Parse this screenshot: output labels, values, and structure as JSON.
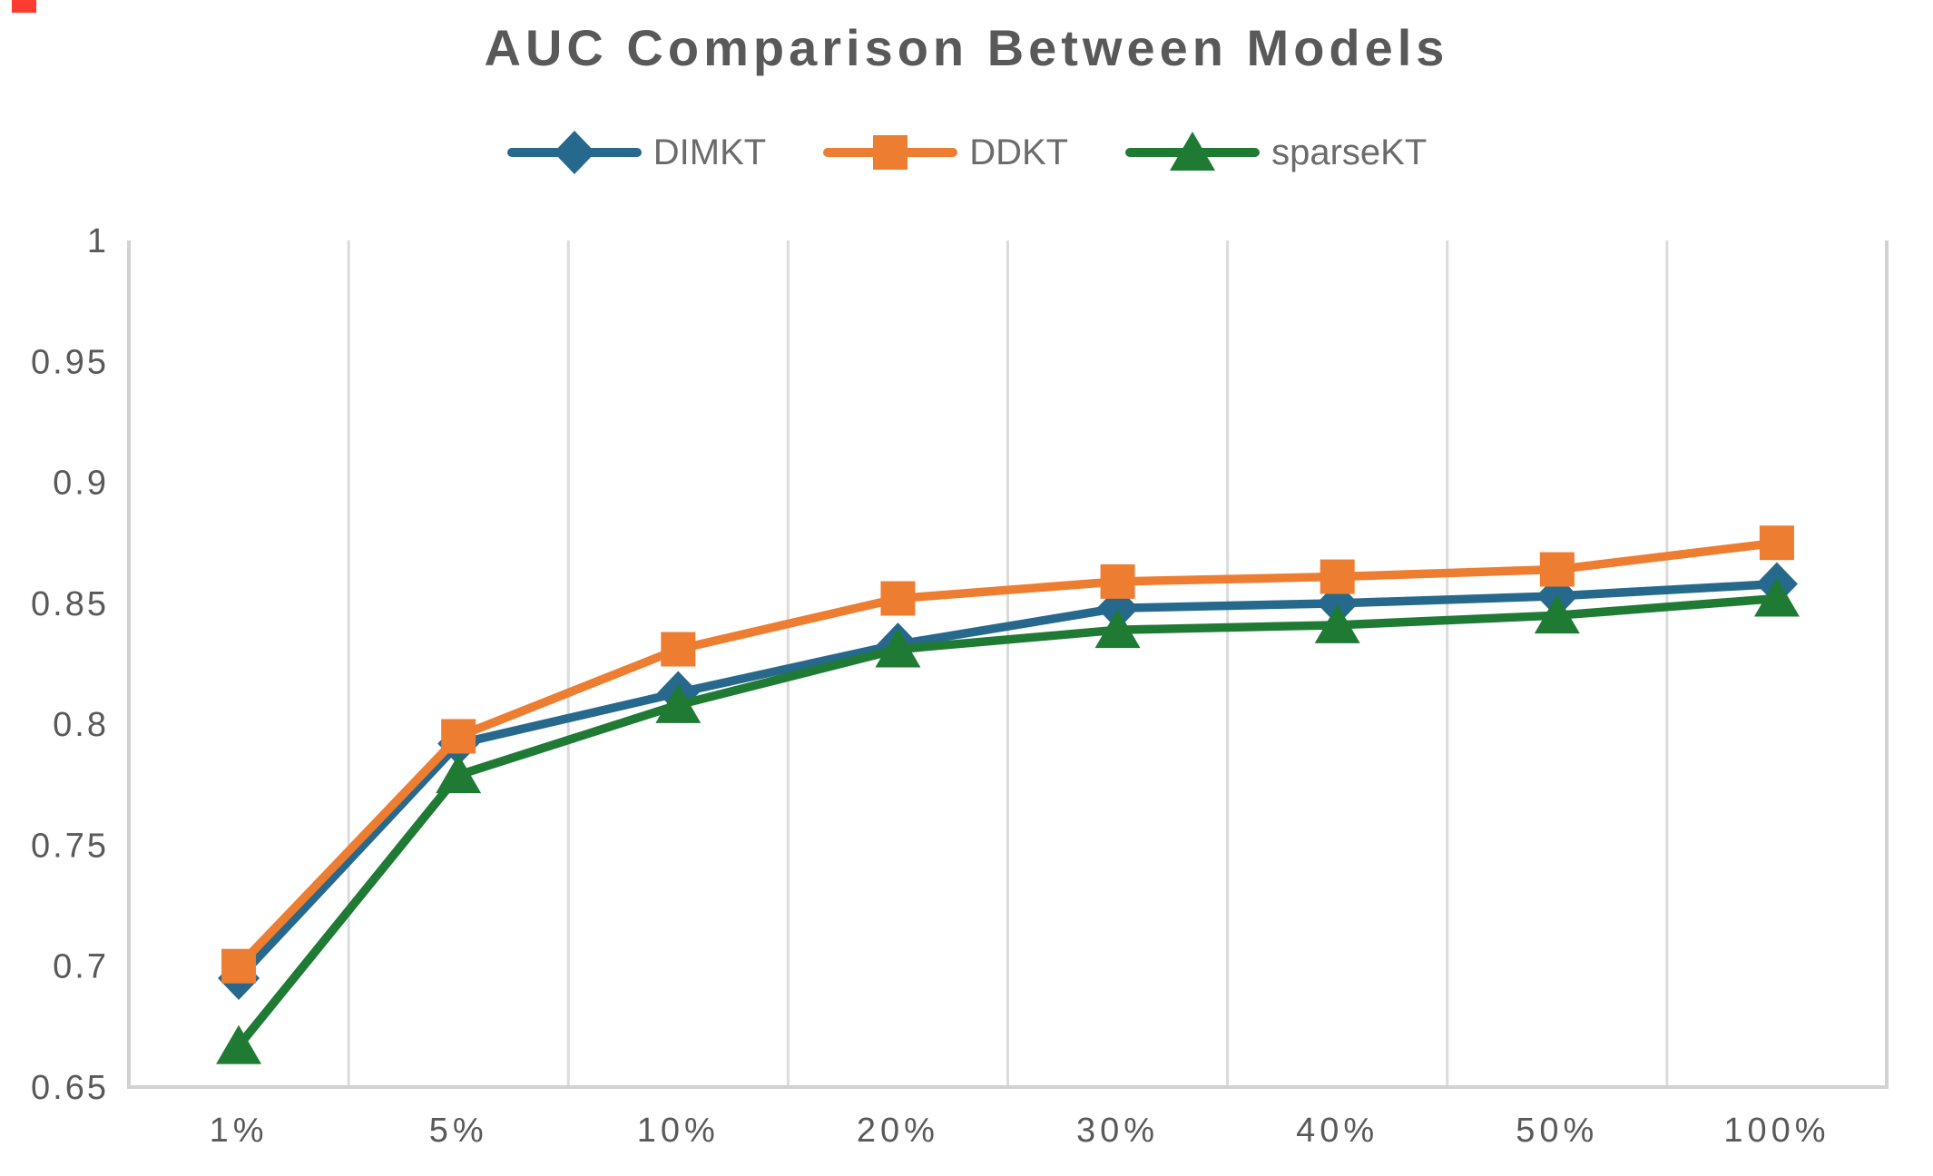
{
  "chart_data": {
    "type": "line",
    "title": "AUC Comparison Between Models",
    "categories": [
      "1%",
      "5%",
      "10%",
      "20%",
      "30%",
      "40%",
      "50%",
      "100%"
    ],
    "series": [
      {
        "name": "DIMKT",
        "color": "#26698C",
        "marker": "diamond",
        "values": [
          0.695,
          0.792,
          0.813,
          0.833,
          0.848,
          0.85,
          0.853,
          0.858
        ]
      },
      {
        "name": "DDKT",
        "color": "#ED7D31",
        "marker": "square",
        "values": [
          0.7,
          0.795,
          0.831,
          0.852,
          0.859,
          0.861,
          0.864,
          0.875
        ]
      },
      {
        "name": "sparseKT",
        "color": "#1F7A34",
        "marker": "triangle",
        "values": [
          0.667,
          0.779,
          0.808,
          0.831,
          0.839,
          0.841,
          0.845,
          0.852
        ]
      }
    ],
    "xlabel": "",
    "ylabel": "",
    "ylim": [
      0.65,
      1.0
    ],
    "yticks": [
      "0.65",
      "0.7",
      "0.75",
      "0.8",
      "0.85",
      "0.9",
      "0.95",
      "1"
    ],
    "grid": "vertical-only",
    "legend_position": "top-center",
    "colors": {
      "title_text": "#595959",
      "tick_text": "#595959",
      "legend_text": "#6b6b6b",
      "gridline": "#dbdbdb",
      "axis_line": "#d2d2d2"
    }
  }
}
